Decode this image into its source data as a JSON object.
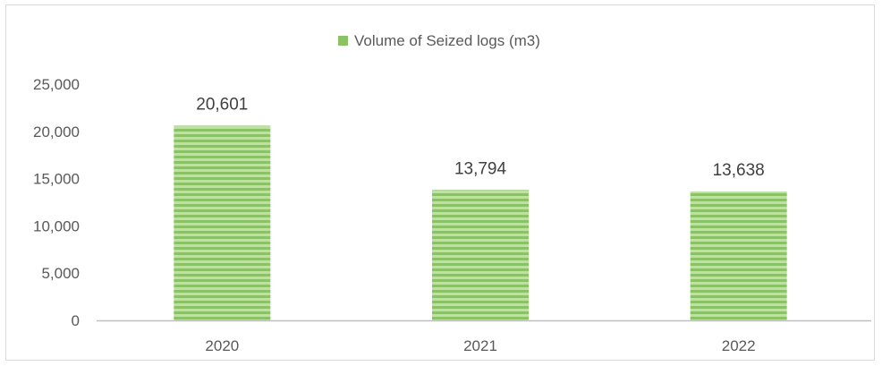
{
  "colors": {
    "bar": "#8cc266",
    "bar_stripe": "#bfe0a4",
    "axis": "#bfbfbf",
    "text": "#595959"
  },
  "chart_data": {
    "type": "bar",
    "categories": [
      "2020",
      "2021",
      "2022"
    ],
    "series": [
      {
        "name": "Volume of Seized logs (m3)",
        "values": [
          20601,
          13794,
          13638
        ]
      }
    ],
    "data_labels": [
      "20,601",
      "13,794",
      "13,638"
    ],
    "yticks": [
      "0",
      "5,000",
      "10,000",
      "15,000",
      "20,000",
      "25,000"
    ],
    "ylim": [
      0,
      25000
    ],
    "legend_position": "top",
    "grid": false,
    "title": "",
    "xlabel": "",
    "ylabel": ""
  }
}
